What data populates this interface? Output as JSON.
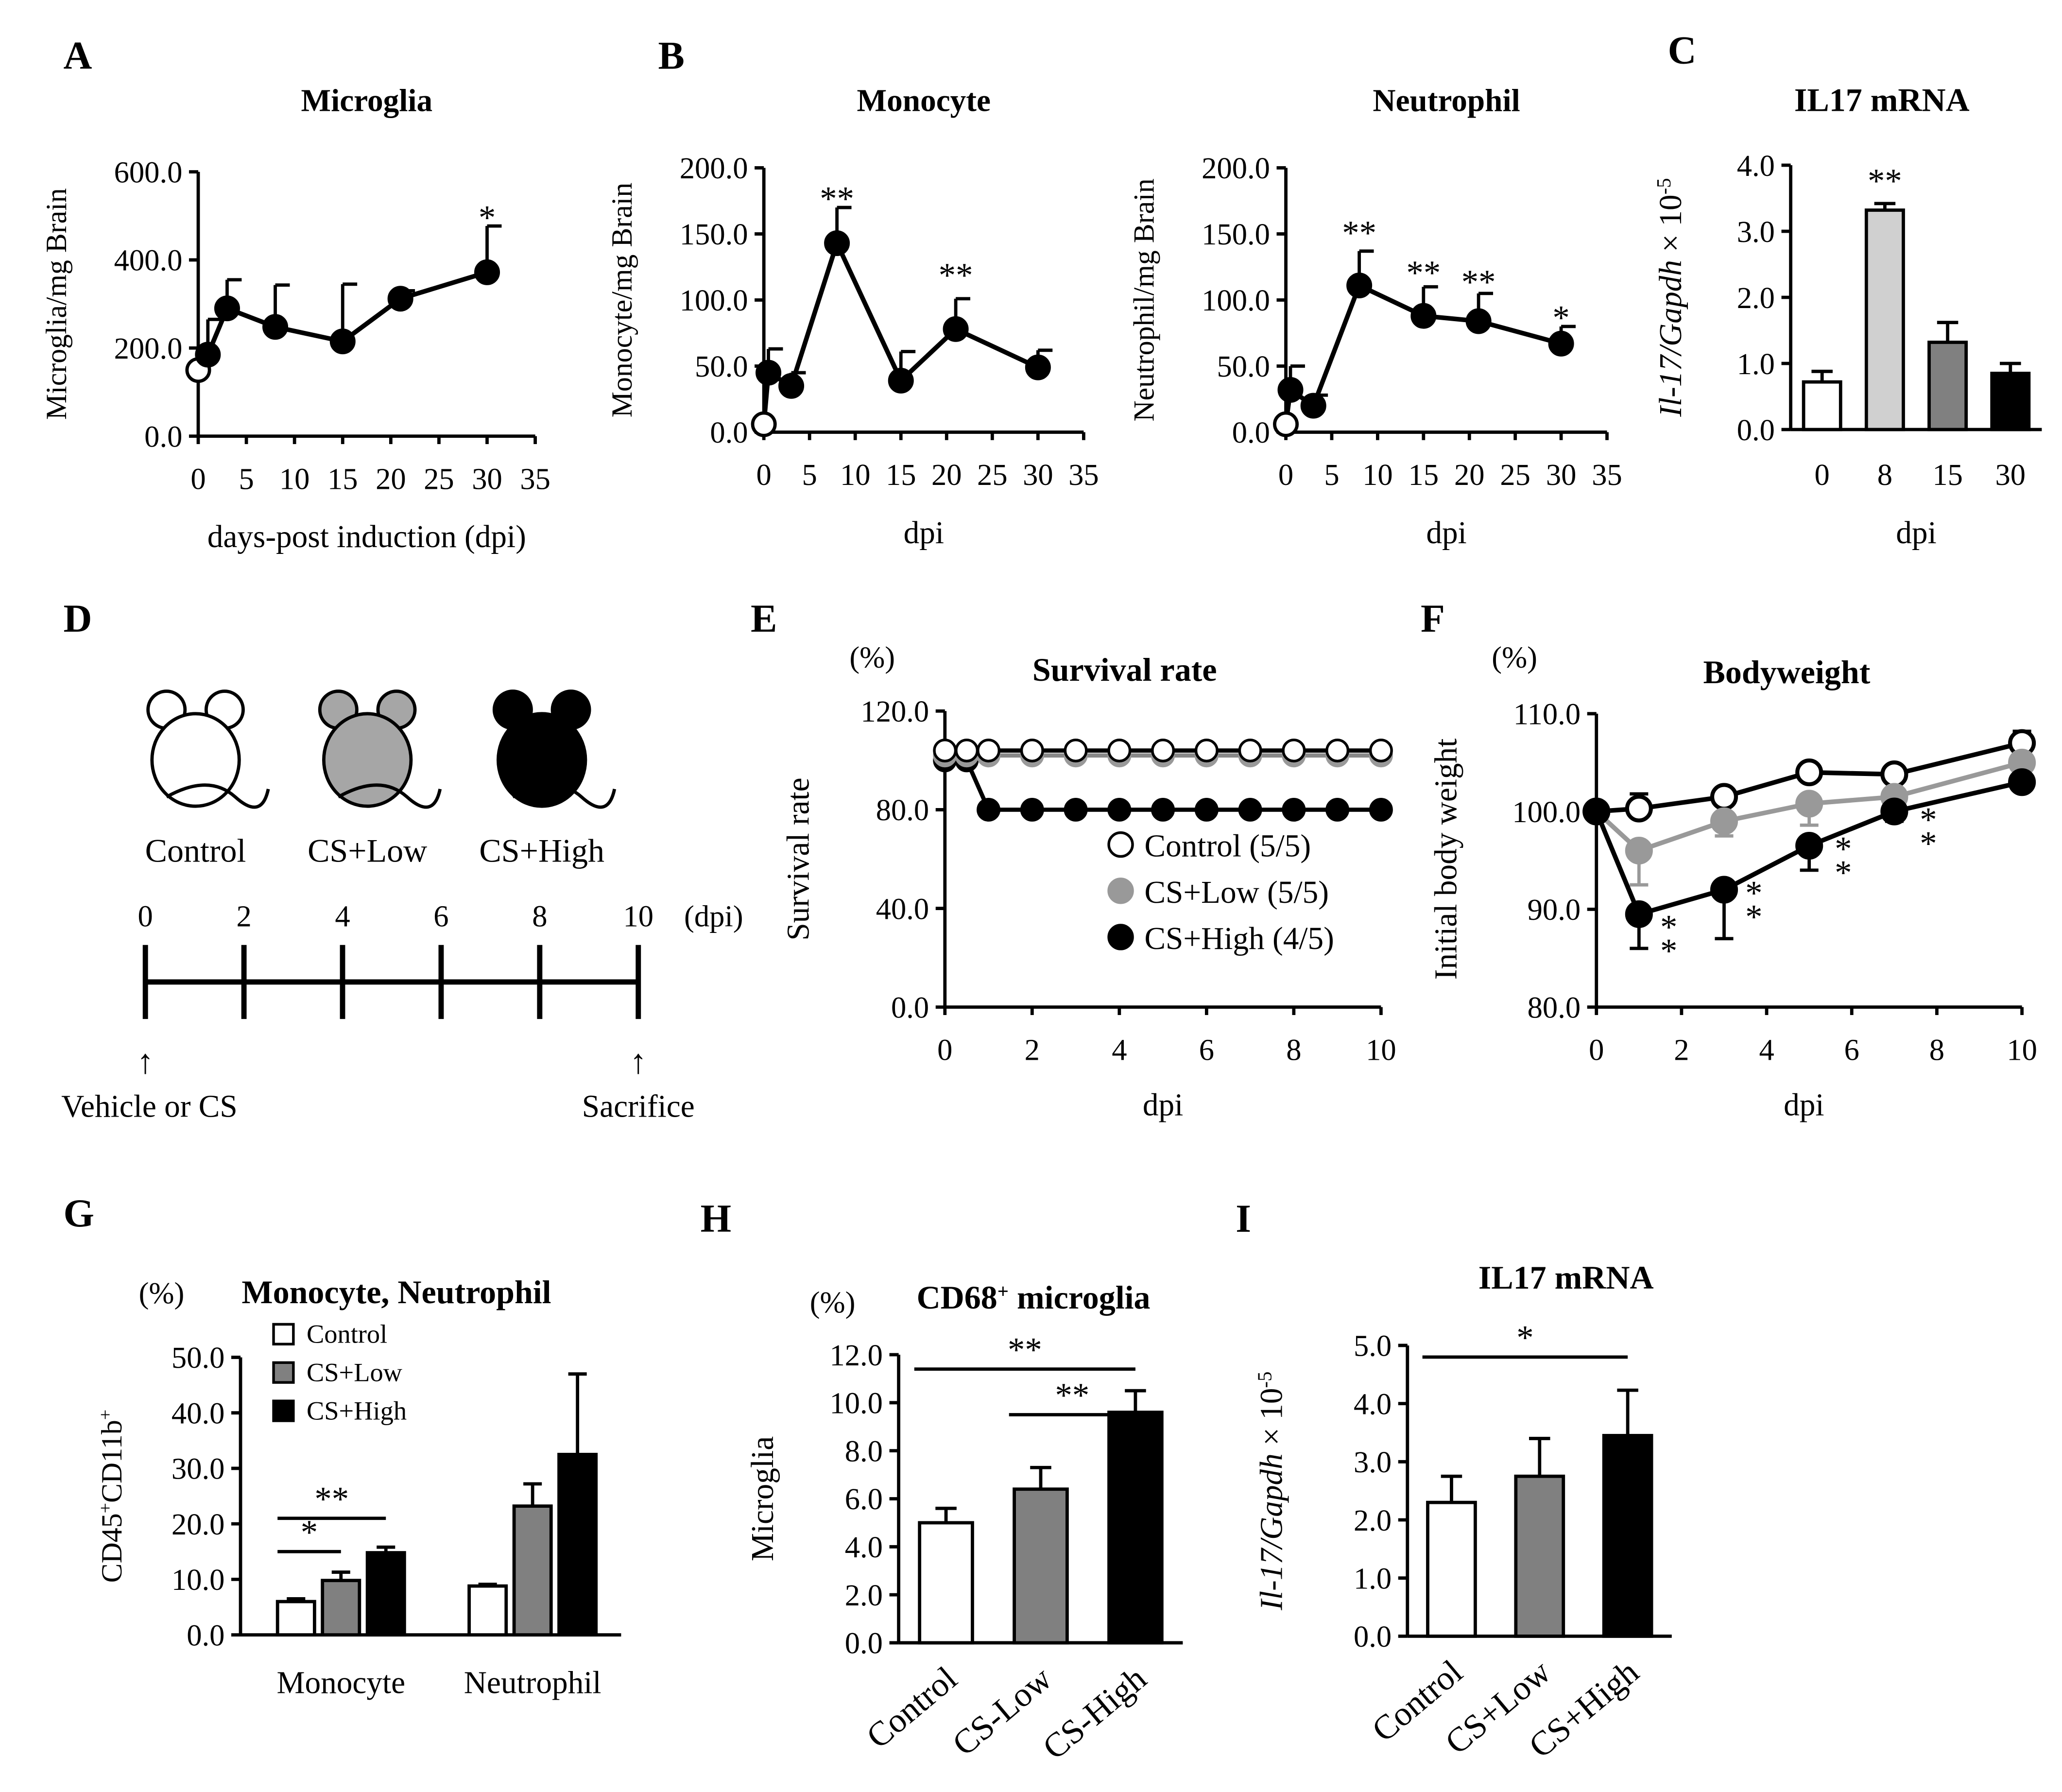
{
  "chart_data": [
    {
      "panel": "A",
      "type": "line",
      "title": "Microglia",
      "ylabel": "Microglia/mg Brain",
      "xlabel": "days-post induction (dpi)",
      "ylim": [
        0,
        600
      ],
      "xlim": [
        0,
        35
      ],
      "yticks": [
        "0.0",
        "200.0",
        "400.0",
        "600.0"
      ],
      "xticks": [
        "0",
        "5",
        "10",
        "15",
        "20",
        "25",
        "30",
        "35"
      ],
      "points": [
        {
          "x": 0,
          "y": 150,
          "err": 0,
          "open": true
        },
        {
          "x": 1,
          "y": 185,
          "err": 80
        },
        {
          "x": 3,
          "y": 290,
          "err": 65
        },
        {
          "x": 8,
          "y": 248,
          "err": 95
        },
        {
          "x": 15,
          "y": 215,
          "err": 130
        },
        {
          "x": 21,
          "y": 312,
          "err": 18
        },
        {
          "x": 30,
          "y": 372,
          "err": 105
        }
      ],
      "annotations": [
        {
          "x": 30,
          "y": 500,
          "text": "*"
        }
      ]
    },
    {
      "panel": "B",
      "type": "line",
      "title": "Monocyte",
      "ylabel": "Monocyte/mg Brain",
      "xlabel": "dpi",
      "ylim": [
        0,
        200
      ],
      "xlim": [
        0,
        35
      ],
      "yticks": [
        "0.0",
        "50.0",
        "100.0",
        "150.0",
        "200.0"
      ],
      "xticks": [
        "0",
        "5",
        "10",
        "15",
        "20",
        "25",
        "30",
        "35"
      ],
      "points": [
        {
          "x": 0,
          "y": 6,
          "err": 0,
          "open": true
        },
        {
          "x": 0.5,
          "y": 45,
          "err": 18
        },
        {
          "x": 3,
          "y": 35,
          "err": 10
        },
        {
          "x": 8,
          "y": 143,
          "err": 27
        },
        {
          "x": 15,
          "y": 39,
          "err": 22
        },
        {
          "x": 21,
          "y": 78,
          "err": 23
        },
        {
          "x": 30,
          "y": 49,
          "err": 13
        }
      ],
      "annotations": [
        {
          "x": 8,
          "y": 178,
          "text": "**"
        },
        {
          "x": 21,
          "y": 120,
          "text": "**"
        }
      ]
    },
    {
      "panel": "B2",
      "type": "line",
      "title": "Neutrophil",
      "ylabel": "Neutrophil/mg Brain",
      "xlabel": "dpi",
      "ylim": [
        0,
        200
      ],
      "xlim": [
        0,
        35
      ],
      "yticks": [
        "0.0",
        "50.0",
        "100.0",
        "150.0",
        "200.0"
      ],
      "xticks": [
        "0",
        "5",
        "10",
        "15",
        "20",
        "25",
        "30",
        "35"
      ],
      "points": [
        {
          "x": 0,
          "y": 6,
          "err": 0,
          "open": true
        },
        {
          "x": 0.5,
          "y": 32,
          "err": 18
        },
        {
          "x": 3,
          "y": 20,
          "err": 8
        },
        {
          "x": 8,
          "y": 111,
          "err": 26
        },
        {
          "x": 15,
          "y": 88,
          "err": 22
        },
        {
          "x": 21,
          "y": 84,
          "err": 21
        },
        {
          "x": 30,
          "y": 67,
          "err": 13
        }
      ],
      "annotations": [
        {
          "x": 8,
          "y": 152,
          "text": "**"
        },
        {
          "x": 15,
          "y": 122,
          "text": "**"
        },
        {
          "x": 21,
          "y": 115,
          "text": "**"
        },
        {
          "x": 30,
          "y": 88,
          "text": "*"
        }
      ]
    },
    {
      "panel": "C",
      "type": "bar",
      "title": "IL17 mRNA",
      "ylabel_italic": "Il-17/Gapdh",
      "ylabel_suffix": " × 10",
      "ylabel_exp": "-5",
      "xlabel": "dpi",
      "ylim": [
        0,
        4
      ],
      "yticks": [
        "0.0",
        "1.0",
        "2.0",
        "3.0",
        "4.0"
      ],
      "categories": [
        "0",
        "8",
        "15",
        "30"
      ],
      "values": [
        0.72,
        3.32,
        1.32,
        0.85
      ],
      "errors": [
        0.16,
        0.1,
        0.3,
        0.15
      ],
      "colors": [
        "#ffffff",
        "#d0d0d0",
        "#808080",
        "#000000"
      ],
      "annotations": [
        {
          "index": 1,
          "y": 3.75,
          "text": "**"
        }
      ]
    },
    {
      "panel": "E",
      "type": "line",
      "title": "Survival rate",
      "unit": "(%)",
      "ylabel": "Survival rate",
      "xlabel": "dpi",
      "ylim": [
        0,
        120
      ],
      "xlim": [
        0,
        10
      ],
      "yticks": [
        "0.0",
        "40.0",
        "80.0",
        "120.0"
      ],
      "xticks": [
        "0",
        "2",
        "4",
        "6",
        "8",
        "10"
      ],
      "series": [
        {
          "name": "Control  (5/5)",
          "color": "#ffffff",
          "x": [
            0,
            0.5,
            1,
            2,
            3,
            4,
            5,
            6,
            7,
            8,
            9,
            10
          ],
          "y": [
            104,
            104,
            104,
            104,
            104,
            104,
            104,
            104,
            104,
            104,
            104,
            104
          ]
        },
        {
          "name": "CS+Low (5/5)",
          "color": "#999999",
          "x": [
            0,
            0.5,
            1,
            2,
            3,
            4,
            5,
            6,
            7,
            8,
            9,
            10
          ],
          "y": [
            102,
            102,
            102,
            102,
            102,
            102,
            102,
            102,
            102,
            102,
            102,
            102
          ]
        },
        {
          "name": "CS+High (4/5)",
          "color": "#000000",
          "x": [
            0,
            0.5,
            1,
            2,
            3,
            4,
            5,
            6,
            7,
            8,
            9,
            10
          ],
          "y": [
            100,
            100,
            80,
            80,
            80,
            80,
            80,
            80,
            80,
            80,
            80,
            80
          ]
        }
      ]
    },
    {
      "panel": "F",
      "type": "line",
      "title": "Bodyweight",
      "unit": "(%)",
      "ylabel": "Initial body weight",
      "xlabel": "dpi",
      "ylim": [
        80,
        110
      ],
      "xlim": [
        0,
        10
      ],
      "yticks": [
        "80.0",
        "90.0",
        "100.0",
        "110.0"
      ],
      "xticks": [
        "0",
        "2",
        "4",
        "6",
        "8",
        "10"
      ],
      "series": [
        {
          "name": "Control",
          "color": "#ffffff",
          "x": [
            0,
            1,
            3,
            5,
            7,
            10
          ],
          "y": [
            100,
            100.3,
            101.5,
            104,
            103.8,
            107
          ],
          "err": [
            0,
            1.5,
            0.8,
            0,
            0,
            1.2
          ]
        },
        {
          "name": "CS+Low",
          "color": "#999999",
          "x": [
            0,
            1,
            3,
            5,
            7,
            10
          ],
          "y": [
            100,
            96,
            99,
            100.8,
            101.5,
            105
          ],
          "err": [
            0,
            3.5,
            1.5,
            2.2,
            1,
            0.8
          ]
        },
        {
          "name": "CS+High",
          "color": "#000000",
          "x": [
            0,
            1,
            3,
            5,
            7,
            10
          ],
          "y": [
            100,
            89.5,
            92,
            96.5,
            100,
            103
          ],
          "err": [
            0,
            3.5,
            5,
            2.5,
            1,
            0.8
          ]
        }
      ],
      "annotations": [
        {
          "x": 1.7,
          "y": 87,
          "text": "**"
        },
        {
          "x": 3.7,
          "y": 90.5,
          "text": "**"
        },
        {
          "x": 5.8,
          "y": 95,
          "text": "**"
        },
        {
          "x": 7.8,
          "y": 98,
          "text": "**"
        }
      ]
    },
    {
      "panel": "G",
      "type": "bar",
      "title": "Monocyte, Neutrophil",
      "unit": "(%)",
      "ylabel_html": "CD45+CD11b+",
      "ylim": [
        0,
        50
      ],
      "yticks": [
        "0.0",
        "10.0",
        "20.0",
        "30.0",
        "40.0",
        "50.0"
      ],
      "categories": [
        "Monocyte",
        "Neutrophil"
      ],
      "series": [
        {
          "name": "Control",
          "color": "#ffffff",
          "values": [
            6.0,
            8.8
          ],
          "errors": [
            0.5,
            0.3
          ]
        },
        {
          "name": "CS+Low",
          "color": "#808080",
          "values": [
            9.8,
            23.2
          ],
          "errors": [
            1.5,
            4.0
          ]
        },
        {
          "name": "CS+High",
          "color": "#000000",
          "values": [
            14.8,
            32.5
          ],
          "errors": [
            1.0,
            14.5
          ]
        }
      ],
      "annotations": [
        {
          "text": "*",
          "from": "Control",
          "to": "CS+Low",
          "y": 15
        },
        {
          "text": "**",
          "from": "Control",
          "to": "CS+High",
          "y": 21
        }
      ]
    },
    {
      "panel": "H",
      "type": "bar",
      "title": "CD68",
      "title_sup": "+",
      "title_suffix": " microglia",
      "unit": "(%)",
      "ylabel": "Microglia",
      "ylim": [
        0,
        12
      ],
      "yticks": [
        "0.0",
        "2.0",
        "4.0",
        "6.0",
        "8.0",
        "10.0",
        "12.0"
      ],
      "categories": [
        "Control",
        "CS-Low",
        "CS-High"
      ],
      "values": [
        5.0,
        6.4,
        9.6
      ],
      "errors": [
        0.6,
        0.9,
        0.9
      ],
      "colors": [
        "#ffffff",
        "#808080",
        "#000000"
      ],
      "annotations": [
        {
          "text": "**",
          "from": 0,
          "to": 2,
          "y": 11.4
        },
        {
          "text": "**",
          "from": 1,
          "to": 2,
          "y": 9.5
        }
      ]
    },
    {
      "panel": "I",
      "type": "bar",
      "title": "IL17 mRNA",
      "ylabel_italic": "Il-17/Gapdh",
      "ylabel_suffix": " × 10",
      "ylabel_exp": "-5",
      "ylim": [
        0,
        5
      ],
      "yticks": [
        "0.0",
        "1.0",
        "2.0",
        "3.0",
        "4.0",
        "5.0"
      ],
      "categories": [
        "Control",
        "CS+Low",
        "CS+High"
      ],
      "values": [
        2.3,
        2.75,
        3.45
      ],
      "errors": [
        0.45,
        0.65,
        0.78
      ],
      "colors": [
        "#ffffff",
        "#808080",
        "#000000"
      ],
      "annotations": [
        {
          "text": "*",
          "from": 0,
          "to": 2,
          "y": 4.8
        }
      ]
    }
  ],
  "panel_D": {
    "labels": [
      "Control",
      "CS+Low",
      "CS+High"
    ],
    "fills": [
      "#ffffff",
      "#a6a6a6",
      "#000000"
    ],
    "timeline_ticks": [
      "0",
      "2",
      "4",
      "6",
      "8",
      "10"
    ],
    "unit": "(dpi)",
    "start_label": "Vehicle or CS",
    "end_label": "Sacrifice",
    "arrow": "↑"
  },
  "panel_letters": [
    "A",
    "B",
    "C",
    "D",
    "E",
    "F",
    "G",
    "H",
    "I"
  ]
}
